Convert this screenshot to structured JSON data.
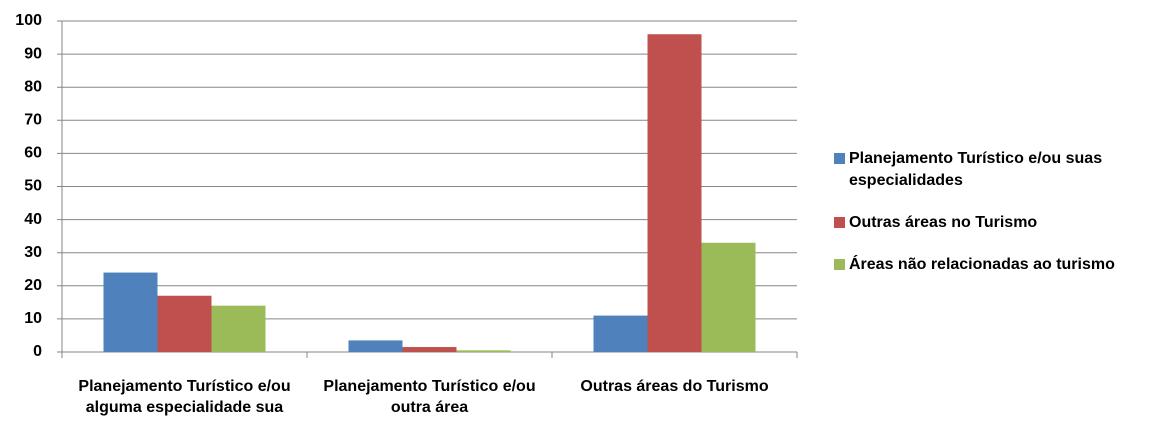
{
  "chart_data": {
    "type": "bar",
    "categories": [
      "Planejamento Turístico e/ou alguma especialidade sua",
      "Planejamento Turístico e/ou outra área",
      "Outras áreas do Turismo"
    ],
    "series": [
      {
        "name": "Planejamento Turístico e/ou suas especialidades",
        "color": "#4f81bd",
        "values": [
          24,
          3.5,
          11
        ]
      },
      {
        "name": "Outras áreas no Turismo",
        "color": "#c0504d",
        "values": [
          17,
          1.5,
          96
        ]
      },
      {
        "name": "Áreas não relacionadas ao turismo",
        "color": "#9bbb59",
        "values": [
          14,
          0.5,
          33
        ]
      }
    ],
    "ylim": [
      0,
      100
    ],
    "yticks": [
      0,
      10,
      20,
      30,
      40,
      50,
      60,
      70,
      80,
      90,
      100
    ],
    "grid": true,
    "legend": "right"
  }
}
